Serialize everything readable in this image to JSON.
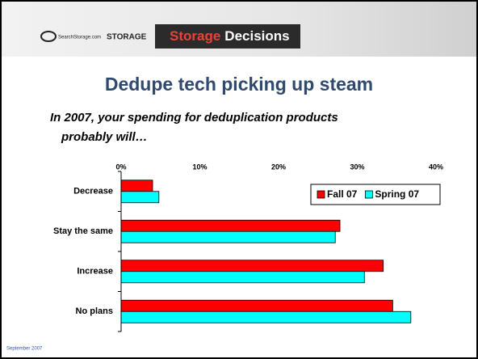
{
  "header": {
    "site": "SearchStorage.com",
    "brand": "STORAGE",
    "event_a": "Storage",
    "event_b": "Decisions"
  },
  "footer": "September 2007",
  "chart_data": {
    "type": "hbar",
    "title": "Dedupe tech picking up steam",
    "subtitle": [
      "In 2007, your spending for deduplication products",
      "probably will…"
    ],
    "categories": [
      "Decrease",
      "Stay the same",
      "Increase",
      "No plans"
    ],
    "series": [
      {
        "name": "Fall 07",
        "color": "#ff0000",
        "values": [
          4.0,
          27.8,
          33.3,
          34.5
        ]
      },
      {
        "name": "Spring 07",
        "color": "#00ffff",
        "values": [
          4.8,
          27.2,
          30.9,
          36.8
        ]
      }
    ],
    "xlim": [
      0,
      40
    ],
    "xticks": [
      {
        "value": 0,
        "label": "0%"
      },
      {
        "value": 10,
        "label": "10%"
      },
      {
        "value": 20,
        "label": "20%"
      },
      {
        "value": 30,
        "label": "30%"
      },
      {
        "value": 40,
        "label": "40%"
      }
    ],
    "legend": "top-right"
  }
}
